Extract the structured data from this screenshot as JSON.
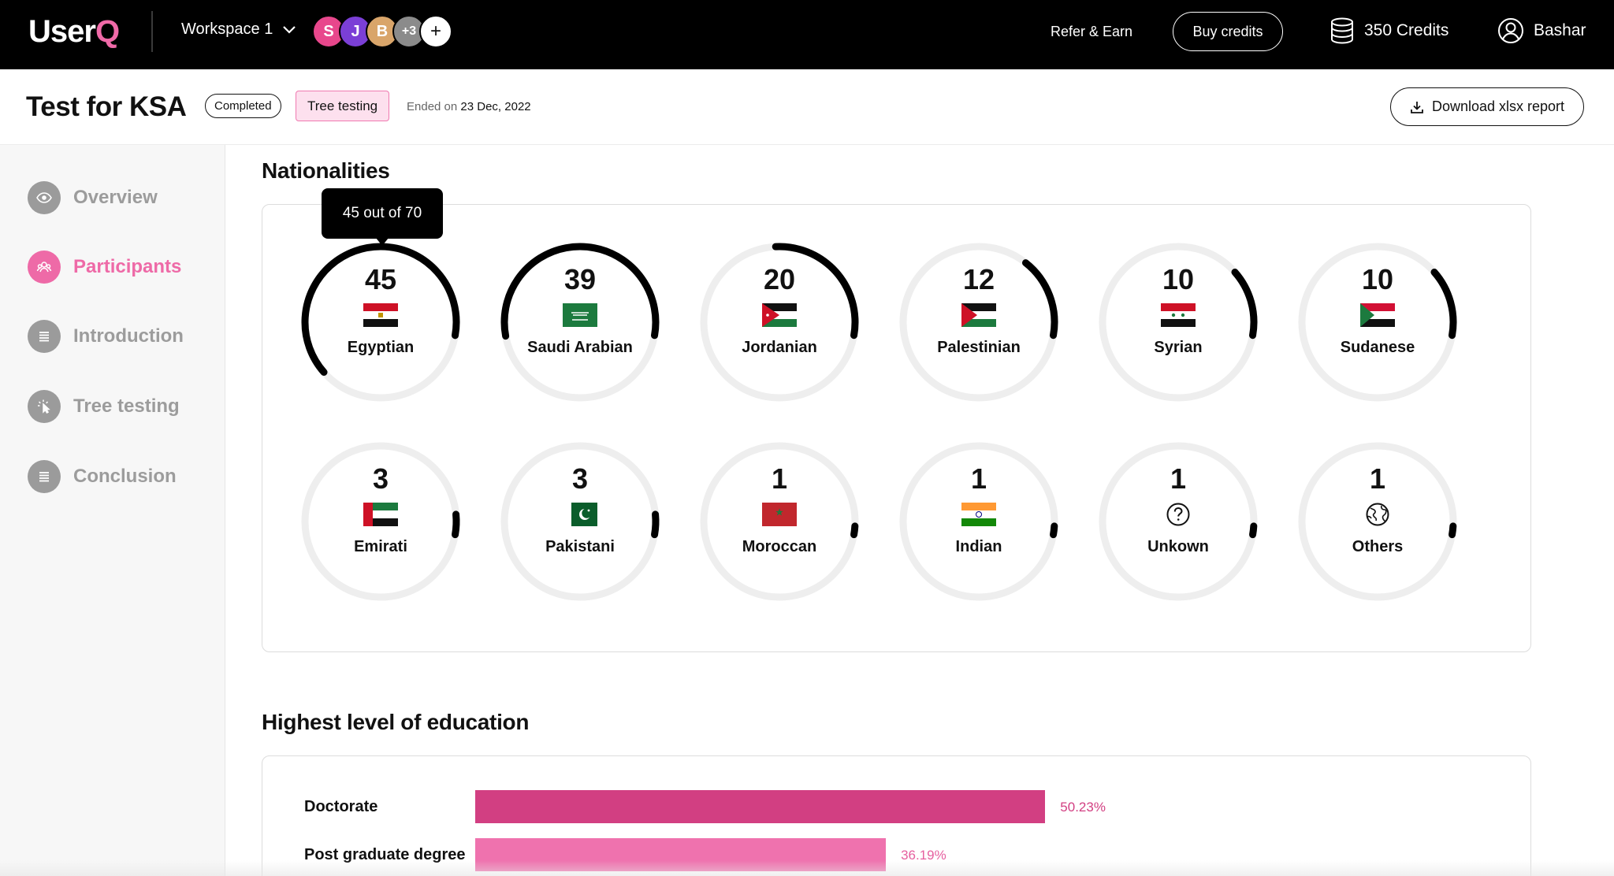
{
  "brand": {
    "name_main": "User",
    "name_accent": "Q",
    "accent_color": "#f06aa8"
  },
  "topbar": {
    "workspace": "Workspace 1",
    "avatars": [
      "S",
      "J",
      "B",
      "+3",
      "+"
    ],
    "refer": "Refer & Earn",
    "buy": "Buy credits",
    "credits": "350 Credits",
    "user": "Bashar"
  },
  "header": {
    "title": "Test for KSA",
    "status": "Completed",
    "type": "Tree testing",
    "ended_prefix": "Ended on",
    "ended_date": "23 Dec, 2022",
    "download": "Download xlsx report"
  },
  "sidebar": {
    "items": [
      {
        "label": "Overview",
        "active": false
      },
      {
        "label": "Participants",
        "active": true
      },
      {
        "label": "Introduction",
        "active": false
      },
      {
        "label": "Tree testing",
        "active": false
      },
      {
        "label": "Conclusion",
        "active": false
      }
    ]
  },
  "nationalities": {
    "title": "Nationalities",
    "total": 70,
    "tooltip": "45 out of 70",
    "items": [
      {
        "count": "45",
        "label": "Egyptian",
        "value": 45,
        "flag": "egypt"
      },
      {
        "count": "39",
        "label": "Saudi Arabian",
        "value": 39,
        "flag": "saudi"
      },
      {
        "count": "20",
        "label": "Jordanian",
        "value": 20,
        "flag": "jordan"
      },
      {
        "count": "12",
        "label": "Palestinian",
        "value": 12,
        "flag": "palestine"
      },
      {
        "count": "10",
        "label": "Syrian",
        "value": 10,
        "flag": "syria"
      },
      {
        "count": "10",
        "label": "Sudanese",
        "value": 10,
        "flag": "sudan"
      },
      {
        "count": "3",
        "label": "Emirati",
        "value": 3,
        "flag": "uae"
      },
      {
        "count": "3",
        "label": "Pakistani",
        "value": 3,
        "flag": "pakistan"
      },
      {
        "count": "1",
        "label": "Moroccan",
        "value": 1,
        "flag": "morocco"
      },
      {
        "count": "1",
        "label": "Indian",
        "value": 1,
        "flag": "india"
      },
      {
        "count": "1",
        "label": "Unkown",
        "value": 1,
        "flag": "question-icon"
      },
      {
        "count": "1",
        "label": "Others",
        "value": 1,
        "flag": "globe-icon"
      }
    ]
  },
  "education": {
    "title": "Highest level of education",
    "bars": [
      {
        "label": "Doctorate",
        "percent": 50.23,
        "text": "50.23%",
        "color": "#d23f82",
        "text_color": "#d23f82"
      },
      {
        "label": "Post graduate degree",
        "percent": 36.19,
        "text": "36.19%",
        "color": "#ef72ae",
        "text_color": "#e6609f"
      }
    ]
  }
}
